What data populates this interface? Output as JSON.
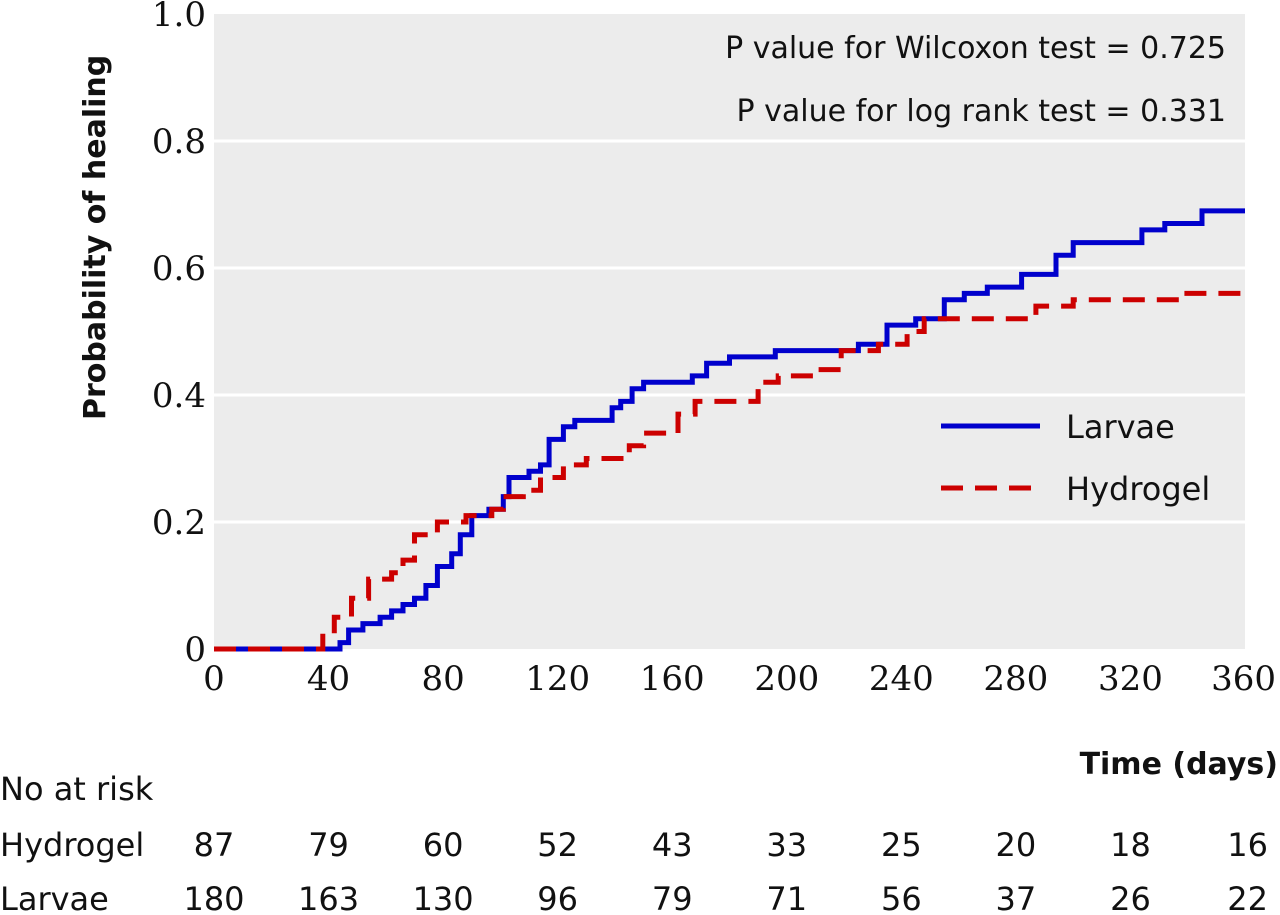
{
  "chart_data": {
    "type": "line",
    "xlabel": "Time (days)",
    "ylabel": "Probability of healing",
    "xlim": [
      0,
      360
    ],
    "ylim": [
      0,
      1.0
    ],
    "x_ticks": [
      "0",
      "40",
      "80",
      "120",
      "160",
      "200",
      "240",
      "280",
      "320",
      "360"
    ],
    "y_ticks": [
      "0",
      "0.2",
      "0.4",
      "0.6",
      "0.8",
      "1.0"
    ],
    "grid": "horizontal",
    "legend_position": "right",
    "annotations": [
      "P value for Wilcoxon test = 0.725",
      "P value for log rank test = 0.331"
    ],
    "series": [
      {
        "name": "Larvae",
        "color": "#0000cc",
        "style": "solid",
        "points": [
          [
            0,
            0
          ],
          [
            40,
            0
          ],
          [
            44,
            0.01
          ],
          [
            47,
            0.03
          ],
          [
            52,
            0.04
          ],
          [
            58,
            0.05
          ],
          [
            62,
            0.06
          ],
          [
            66,
            0.07
          ],
          [
            70,
            0.08
          ],
          [
            74,
            0.1
          ],
          [
            78,
            0.13
          ],
          [
            83,
            0.15
          ],
          [
            86,
            0.18
          ],
          [
            90,
            0.21
          ],
          [
            96,
            0.22
          ],
          [
            101,
            0.24
          ],
          [
            103,
            0.27
          ],
          [
            110,
            0.28
          ],
          [
            114,
            0.29
          ],
          [
            117,
            0.33
          ],
          [
            122,
            0.35
          ],
          [
            126,
            0.36
          ],
          [
            135,
            0.36
          ],
          [
            139,
            0.38
          ],
          [
            142,
            0.39
          ],
          [
            146,
            0.41
          ],
          [
            150,
            0.42
          ],
          [
            160,
            0.42
          ],
          [
            167,
            0.43
          ],
          [
            172,
            0.45
          ],
          [
            180,
            0.46
          ],
          [
            196,
            0.47
          ],
          [
            225,
            0.48
          ],
          [
            235,
            0.51
          ],
          [
            245,
            0.52
          ],
          [
            255,
            0.55
          ],
          [
            262,
            0.56
          ],
          [
            270,
            0.57
          ],
          [
            282,
            0.59
          ],
          [
            294,
            0.62
          ],
          [
            300,
            0.64
          ],
          [
            316,
            0.64
          ],
          [
            324,
            0.66
          ],
          [
            332,
            0.67
          ],
          [
            345,
            0.69
          ],
          [
            360,
            0.69
          ]
        ]
      },
      {
        "name": "Hydrogel",
        "color": "#cc0000",
        "style": "dashed",
        "points": [
          [
            0,
            0
          ],
          [
            34,
            0
          ],
          [
            38,
            0.02
          ],
          [
            42,
            0.05
          ],
          [
            48,
            0.08
          ],
          [
            54,
            0.11
          ],
          [
            62,
            0.12
          ],
          [
            66,
            0.14
          ],
          [
            70,
            0.18
          ],
          [
            78,
            0.2
          ],
          [
            88,
            0.21
          ],
          [
            97,
            0.22
          ],
          [
            101,
            0.24
          ],
          [
            108,
            0.25
          ],
          [
            114,
            0.27
          ],
          [
            122,
            0.29
          ],
          [
            130,
            0.3
          ],
          [
            141,
            0.3
          ],
          [
            145,
            0.32
          ],
          [
            150,
            0.34
          ],
          [
            156,
            0.34
          ],
          [
            162,
            0.37
          ],
          [
            168,
            0.39
          ],
          [
            182,
            0.39
          ],
          [
            190,
            0.42
          ],
          [
            197,
            0.43
          ],
          [
            210,
            0.44
          ],
          [
            219,
            0.47
          ],
          [
            232,
            0.48
          ],
          [
            242,
            0.5
          ],
          [
            248,
            0.52
          ],
          [
            287,
            0.54
          ],
          [
            300,
            0.55
          ],
          [
            320,
            0.55
          ],
          [
            336,
            0.56
          ],
          [
            360,
            0.56
          ]
        ]
      }
    ],
    "at_risk": {
      "header": "No at risk",
      "rows": [
        {
          "label": "Hydrogel",
          "values": [
            "87",
            "79",
            "60",
            "52",
            "43",
            "33",
            "25",
            "20",
            "18",
            "16"
          ]
        },
        {
          "label": "Larvae",
          "values": [
            "180",
            "163",
            "130",
            "96",
            "79",
            "71",
            "56",
            "37",
            "26",
            "22"
          ]
        }
      ]
    }
  }
}
